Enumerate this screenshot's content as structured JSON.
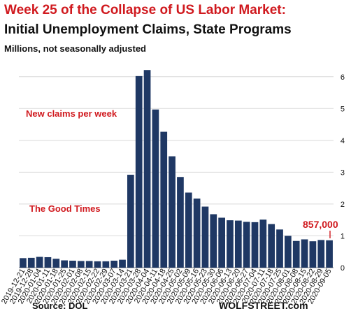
{
  "colors": {
    "bar": "#1f3864",
    "title_accent": "#d0191e",
    "annotation": "#d0191e",
    "grid": "#d9d9d9",
    "text": "#111111"
  },
  "header": {
    "title": "Week 25 of the Collapse of US Labor Market:",
    "title2": "Initial Unemployment Claims, State Programs",
    "subtitle": "Millions, not seasonally adjusted"
  },
  "footer": {
    "source": "Source: DOL",
    "brand": "WOLFSTREET.com"
  },
  "chart_data": {
    "type": "bar",
    "title": "Week 25 of the Collapse of US Labor Market: Initial Unemployment Claims, State Programs",
    "subtitle": "Millions, not seasonally adjusted",
    "xlabel": "",
    "ylabel": "",
    "ylim": [
      0,
      6.5
    ],
    "y_ticks": [
      "0",
      "1",
      "2",
      "3",
      "4",
      "5",
      "6"
    ],
    "grid": true,
    "categories": [
      "2019-12-21",
      "2019-12-28",
      "2020-01-04",
      "2020-01-11",
      "2020-01-18",
      "2020-01-25",
      "2020-02-01",
      "2020-02-08",
      "2020-02-15",
      "2020-02-22",
      "2020-02-29",
      "2020-03-07",
      "2020-03-14",
      "2020-03-21",
      "2020-03-28",
      "2020-04-04",
      "2020-04-11",
      "2020-04-18",
      "2020-04-25",
      "2020-05-02",
      "2020-05-09",
      "2020-05-16",
      "2020-05-23",
      "2020-05-30",
      "2020-06-06",
      "2020-06-13",
      "2020-06-20",
      "2020-06-27",
      "2020-07-04",
      "2020-07-11",
      "2020-07-18",
      "2020-07-25",
      "2020-08-01",
      "2020-08-08",
      "2020-08-15",
      "2020-08-22",
      "2020-08-29",
      "2020-09-05"
    ],
    "values": [
      0.3,
      0.31,
      0.34,
      0.33,
      0.28,
      0.23,
      0.22,
      0.21,
      0.21,
      0.2,
      0.2,
      0.22,
      0.25,
      2.92,
      6.02,
      6.21,
      4.97,
      4.27,
      3.5,
      2.85,
      2.36,
      2.17,
      1.92,
      1.68,
      1.57,
      1.49,
      1.48,
      1.44,
      1.43,
      1.51,
      1.37,
      1.2,
      1.0,
      0.84,
      0.89,
      0.83,
      0.87,
      0.86
    ],
    "annotations": [
      {
        "text": "New claims per week",
        "near": "upper-left of chart"
      },
      {
        "text": "The Good Times",
        "near": "above pre-March bars"
      },
      {
        "text": "857,000",
        "near": "last bar"
      }
    ]
  }
}
